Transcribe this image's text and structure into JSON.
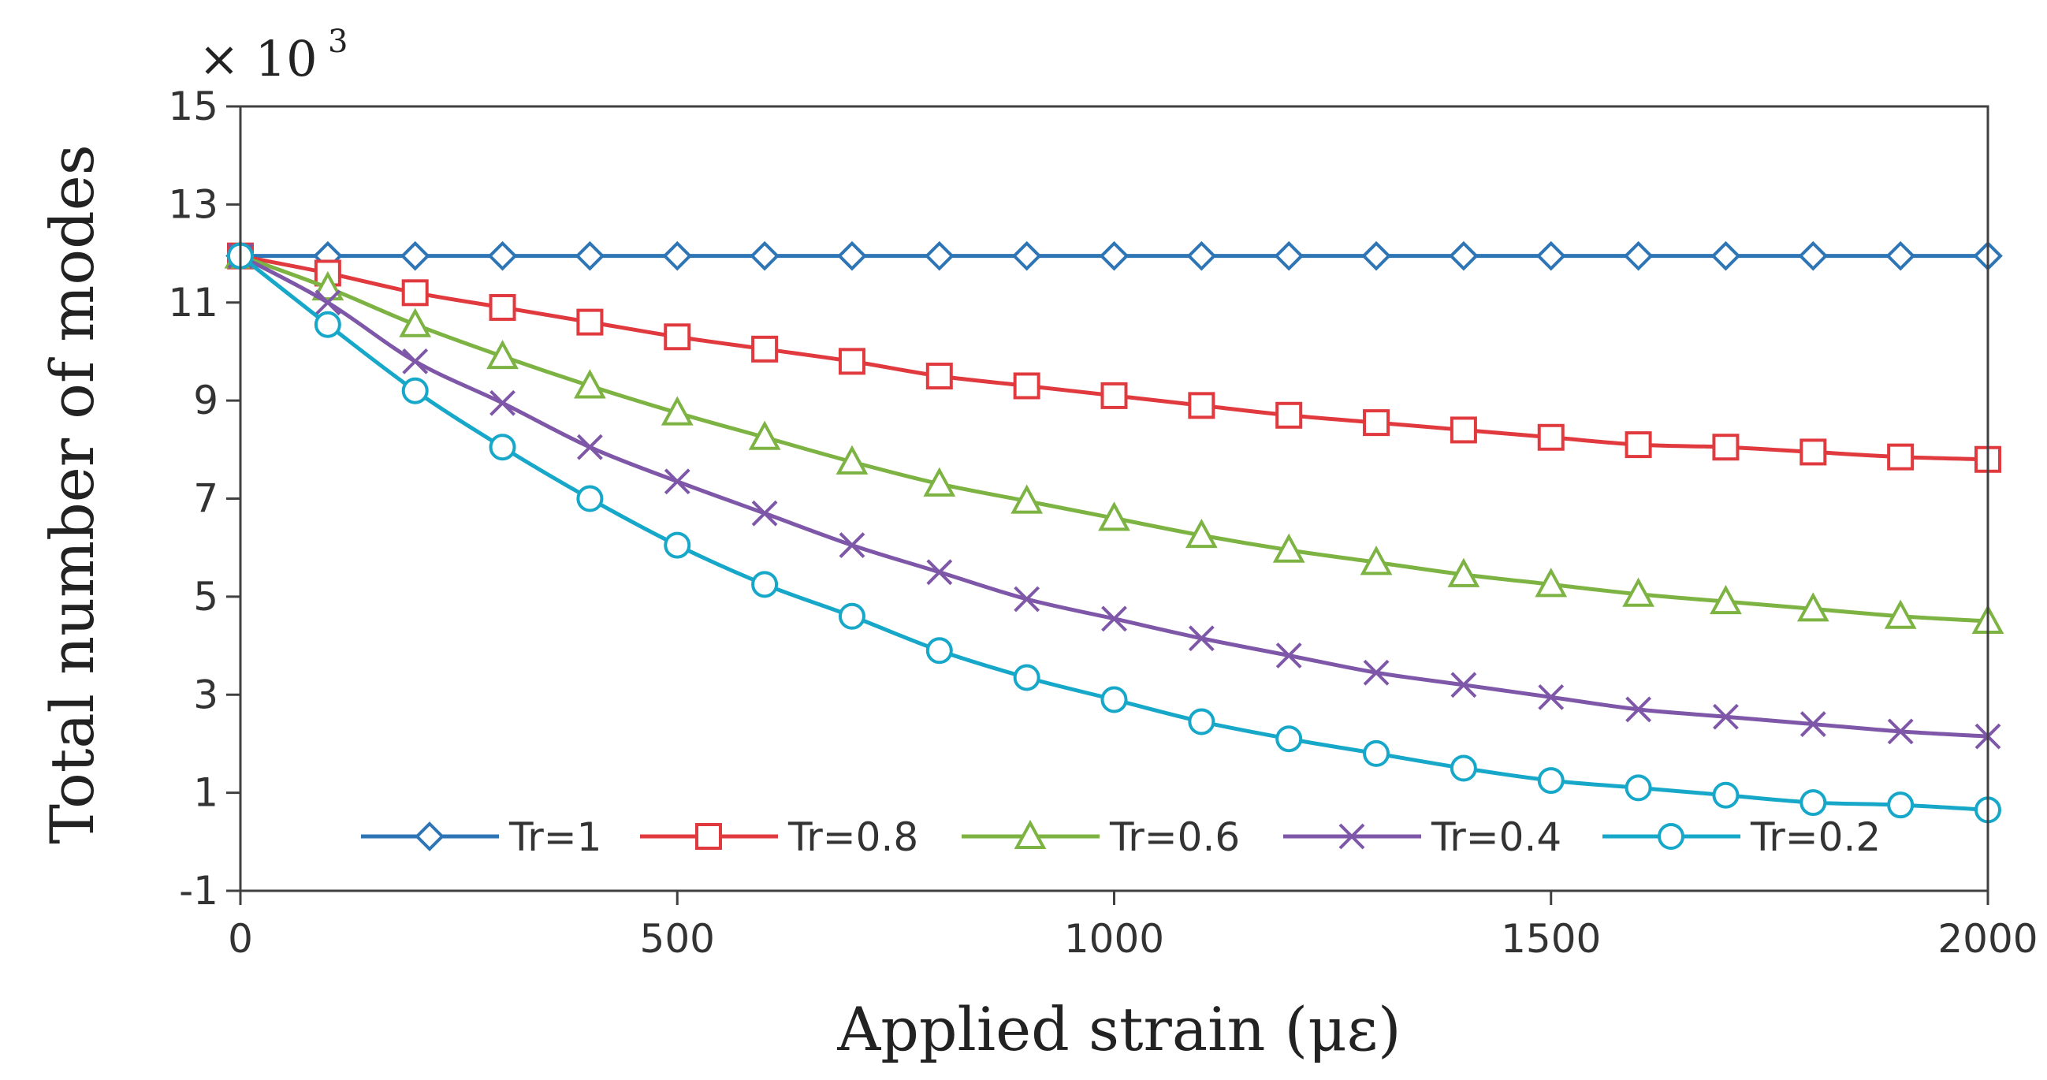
{
  "chart_data": {
    "type": "line",
    "title": "",
    "xlabel": "Applied strain (με)",
    "ylabel": "Total number of modes",
    "y_multiplier": "× 10",
    "y_multiplier_exp": "3",
    "xlim": [
      0,
      2000
    ],
    "ylim": [
      -1,
      15
    ],
    "x_ticks": [
      0,
      500,
      1000,
      1500,
      2000
    ],
    "y_ticks": [
      -1,
      1,
      3,
      5,
      7,
      9,
      11,
      13,
      15
    ],
    "grid": false,
    "legend_position": "bottom-right",
    "x": [
      0,
      100,
      200,
      300,
      400,
      500,
      600,
      700,
      800,
      900,
      1000,
      1100,
      1200,
      1300,
      1400,
      1500,
      1600,
      1700,
      1800,
      1900,
      2000
    ],
    "series": [
      {
        "name": "Tr=1",
        "color": "#2E75B6",
        "marker": "diamond",
        "values": [
          11.95,
          11.95,
          11.95,
          11.95,
          11.95,
          11.95,
          11.95,
          11.95,
          11.95,
          11.95,
          11.95,
          11.95,
          11.95,
          11.95,
          11.95,
          11.95,
          11.95,
          11.95,
          11.95,
          11.95,
          11.95
        ]
      },
      {
        "name": "Tr=0.8",
        "color": "#E0393E",
        "marker": "square",
        "values": [
          11.95,
          11.6,
          11.2,
          10.9,
          10.6,
          10.3,
          10.05,
          9.8,
          9.5,
          9.3,
          9.1,
          8.9,
          8.7,
          8.55,
          8.4,
          8.25,
          8.1,
          8.05,
          7.95,
          7.85,
          7.8
        ]
      },
      {
        "name": "Tr=0.6",
        "color": "#7CB342",
        "marker": "triangle",
        "values": [
          11.95,
          11.3,
          10.55,
          9.9,
          9.3,
          8.75,
          8.25,
          7.75,
          7.3,
          6.95,
          6.6,
          6.25,
          5.95,
          5.7,
          5.45,
          5.25,
          5.05,
          4.9,
          4.75,
          4.6,
          4.5
        ]
      },
      {
        "name": "Tr=0.4",
        "color": "#7E57A8",
        "marker": "x",
        "values": [
          11.95,
          11.0,
          9.8,
          8.95,
          8.05,
          7.35,
          6.7,
          6.05,
          5.5,
          4.95,
          4.55,
          4.15,
          3.8,
          3.45,
          3.2,
          2.95,
          2.7,
          2.55,
          2.4,
          2.25,
          2.15
        ]
      },
      {
        "name": "Tr=0.2",
        "color": "#17A8C9",
        "marker": "circle",
        "values": [
          11.95,
          10.55,
          9.2,
          8.05,
          7.0,
          6.05,
          5.25,
          4.6,
          3.9,
          3.35,
          2.9,
          2.45,
          2.1,
          1.8,
          1.5,
          1.25,
          1.1,
          0.95,
          0.8,
          0.75,
          0.65
        ]
      }
    ]
  }
}
